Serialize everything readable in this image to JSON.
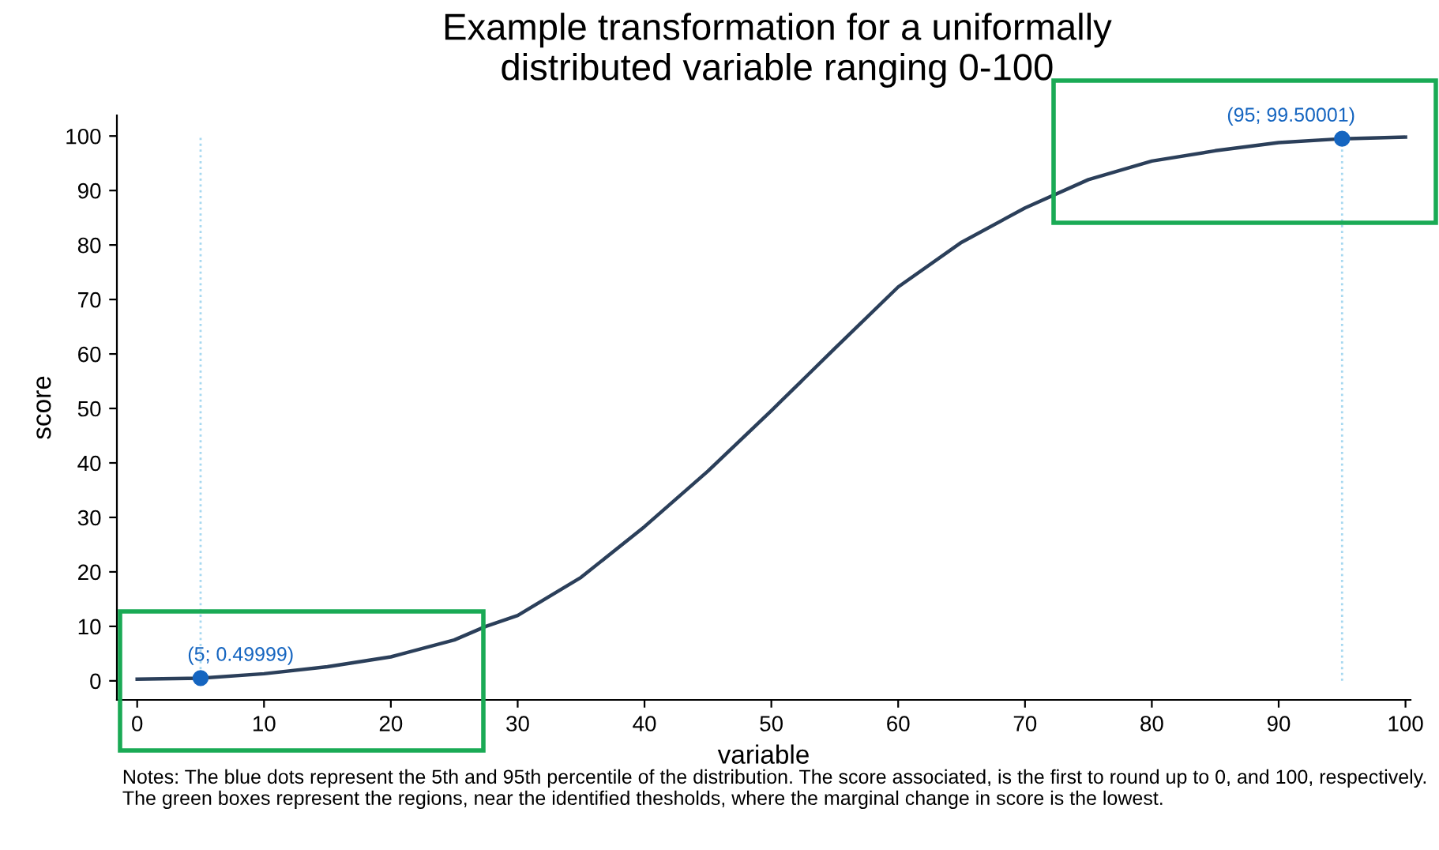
{
  "chart_data": {
    "type": "line",
    "title": "Example transformation for a uniformally\ndistributed variable ranging 0-100",
    "xlabel": "variable",
    "ylabel": "score",
    "xlim": [
      -1.6,
      100.4
    ],
    "ylim": [
      -3.5,
      103.8
    ],
    "xticks": [
      0,
      10,
      20,
      30,
      40,
      50,
      60,
      70,
      80,
      90,
      100
    ],
    "yticks": [
      0,
      10,
      20,
      30,
      40,
      50,
      60,
      70,
      80,
      90,
      100
    ],
    "grid": false,
    "legend": false,
    "series": [
      {
        "color": "#2b3f5a",
        "x": [
          0,
          5,
          10,
          15,
          20,
          25,
          27.5,
          30,
          35,
          40,
          45,
          50,
          55,
          60,
          65,
          70,
          75,
          80,
          85,
          90,
          95,
          100
        ],
        "values": [
          0.3,
          0.5,
          1.3,
          2.6,
          4.4,
          7.5,
          10,
          12,
          19,
          28.3,
          38.5,
          49.6,
          61,
          72.3,
          80.5,
          86.8,
          92,
          95.4,
          97.3,
          98.8,
          99.5,
          99.8
        ]
      },
      {
        "type": "scatter",
        "color": "#1565c0",
        "marker": "circle",
        "x": [
          5,
          95
        ],
        "values": [
          0.49999,
          99.50001
        ],
        "value_labels": [
          "(5; 0.49999)",
          "(95; 99.50001)"
        ]
      }
    ],
    "ref_lines": [
      {
        "axis": "x",
        "value": 5,
        "color": "#a6d8f0",
        "line_style": "dotted"
      },
      {
        "axis": "x",
        "value": 95,
        "color": "#a6d8f0",
        "line_style": "dotted"
      }
    ],
    "annotations": [
      "Notes: The blue dots represent the 5th and 95th percentile of the distribution. The score associated, is the first to round up to 0, and 100, respectively. The green boxes represent the regions, near the identified thesholds, where the marginal change in score is the lowest."
    ]
  }
}
